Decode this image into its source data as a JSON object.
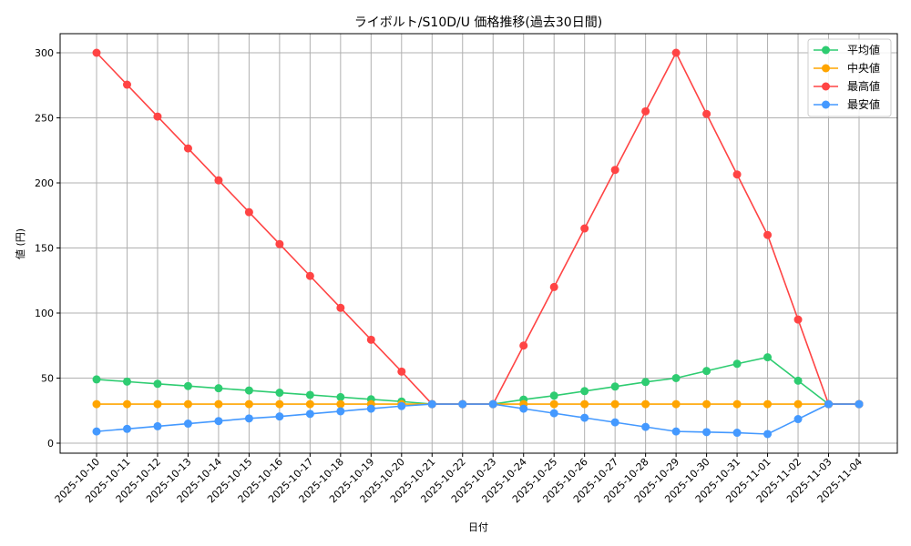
{
  "chart_data": {
    "type": "line",
    "title": "ライボルト/S10D/U 価格推移(過去30日間)",
    "xlabel": "日付",
    "ylabel": "値 (円)",
    "ylim": [
      -8,
      315
    ],
    "yticks": [
      0,
      50,
      100,
      150,
      200,
      250,
      300
    ],
    "grid": true,
    "legend_position": "upper right",
    "categories": [
      "2025-10-10",
      "2025-10-11",
      "2025-10-12",
      "2025-10-13",
      "2025-10-14",
      "2025-10-15",
      "2025-10-16",
      "2025-10-17",
      "2025-10-18",
      "2025-10-19",
      "2025-10-20",
      "2025-10-21",
      "2025-10-22",
      "2025-10-23",
      "2025-10-24",
      "2025-10-25",
      "2025-10-26",
      "2025-10-27",
      "2025-10-28",
      "2025-10-29",
      "2025-10-30",
      "2025-10-31",
      "2025-11-01",
      "2025-11-02",
      "2025-11-03",
      "2025-11-04"
    ],
    "series": [
      {
        "name": "平均値",
        "color": "#2ecc71",
        "values": [
          49,
          47.3,
          45.6,
          43.9,
          42.2,
          40.5,
          38.8,
          37.1,
          35.4,
          33.7,
          32,
          30,
          30,
          30,
          33.5,
          36.5,
          40,
          43.5,
          47,
          50,
          55.5,
          61,
          66,
          48,
          30,
          30
        ]
      },
      {
        "name": "中央値",
        "color": "#ffa500",
        "values": [
          30,
          30,
          30,
          30,
          30,
          30,
          30,
          30,
          30,
          30,
          30,
          30,
          30,
          30,
          30,
          30,
          30,
          30,
          30,
          30,
          30,
          30,
          30,
          30,
          30,
          30
        ]
      },
      {
        "name": "最高値",
        "color": "#ff4444",
        "values": [
          300,
          275.5,
          251,
          226.5,
          202,
          177.5,
          153,
          128.5,
          104,
          79.5,
          55,
          30,
          30,
          30,
          75,
          120,
          165,
          210,
          255,
          300,
          253,
          206.5,
          160,
          95,
          30,
          30
        ]
      },
      {
        "name": "最安値",
        "color": "#4499ff",
        "values": [
          9,
          11,
          13,
          15,
          17,
          19,
          20.5,
          22.5,
          24.5,
          26.5,
          28.5,
          30,
          30,
          30,
          26.5,
          23,
          19.5,
          16,
          12.5,
          9,
          8.5,
          8,
          7,
          18.5,
          30,
          30
        ]
      }
    ]
  }
}
